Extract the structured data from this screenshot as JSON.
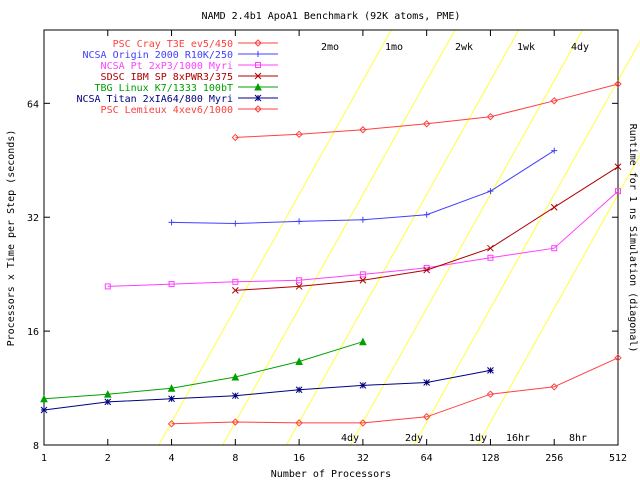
{
  "chart_data": {
    "type": "line",
    "title": "NAMD 2.4b1 ApoA1 Benchmark (92K atoms, PME)",
    "xlabel": "Number of Processors",
    "ylabel": "Processors x Time per Step (seconds)",
    "y2label": "Runtime for 1 ns Simulation (diagonal)",
    "xscale": "log2",
    "yscale": "log2",
    "xlim": [
      1,
      512
    ],
    "ylim": [
      8,
      100
    ],
    "xticks": [
      1,
      2,
      4,
      8,
      16,
      32,
      64,
      128,
      256,
      512
    ],
    "xtick_labels": [
      "1",
      "2",
      "4",
      "8",
      "16",
      "32",
      "64",
      "128",
      "256",
      "512"
    ],
    "yticks": [
      8,
      16,
      32,
      64
    ],
    "ytick_labels": [
      "8",
      "16",
      "32",
      "64"
    ],
    "grid": false,
    "legend_position": "top-left",
    "series": [
      {
        "name": "PSC Cray T3E ev5/450",
        "color": "#ff4040",
        "marker": "diamond",
        "x": [
          8,
          16,
          32,
          64,
          128,
          256,
          512
        ],
        "y": [
          52,
          53,
          54.5,
          56.5,
          59,
          65,
          72
        ]
      },
      {
        "name": "NCSA Origin 2000 R10K/250",
        "color": "#4040ff",
        "marker": "plus",
        "x": [
          4,
          8,
          16,
          32,
          64,
          128,
          256
        ],
        "y": [
          31,
          30.8,
          31.2,
          31.5,
          32.5,
          37.5,
          48
        ]
      },
      {
        "name": "NCSA Pt 2xP3/1000 Myri",
        "color": "#ff40ff",
        "marker": "square",
        "x": [
          2,
          4,
          8,
          16,
          32,
          64,
          128,
          256,
          512
        ],
        "y": [
          21,
          21.3,
          21.6,
          21.8,
          22.6,
          23.5,
          25,
          26.5,
          37.5
        ]
      },
      {
        "name": "SDSC IBM SP 8xPWR3/375",
        "color": "#b00000",
        "marker": "x",
        "x": [
          8,
          16,
          32,
          64,
          128,
          256,
          512
        ],
        "y": [
          20.5,
          21,
          21.8,
          23.2,
          26.5,
          34,
          43.5
        ]
      },
      {
        "name": "TBG Linux K7/1333 100bT",
        "color": "#00a000",
        "marker": "triangle",
        "x": [
          1,
          2,
          4,
          8,
          16,
          32
        ],
        "y": [
          10.6,
          10.9,
          11.3,
          12.1,
          13.3,
          15
        ]
      },
      {
        "name": "NCSA Titan 2xIA64/800 Myri",
        "color": "#000080",
        "marker": "star",
        "x": [
          1,
          2,
          4,
          8,
          16,
          32,
          64,
          128
        ],
        "y": [
          9.9,
          10.4,
          10.6,
          10.8,
          11.2,
          11.5,
          11.7,
          12.6
        ]
      },
      {
        "name": "PSC Lemieux 4xev6/1000",
        "color": "#ff4040",
        "marker": "diamond",
        "x": [
          4,
          8,
          16,
          32,
          64,
          128,
          256,
          512
        ],
        "y": [
          9.1,
          9.2,
          9.15,
          9.15,
          9.5,
          10.9,
          11.4,
          13.6
        ]
      }
    ],
    "diagonals": {
      "color": "#ffff40",
      "top_labels": [
        "2mo",
        "1mo",
        "2wk",
        "1wk",
        "4dy"
      ],
      "bottom_labels": [
        "4dy",
        "2dy",
        "1dy",
        "16hr",
        "8hr"
      ]
    }
  }
}
